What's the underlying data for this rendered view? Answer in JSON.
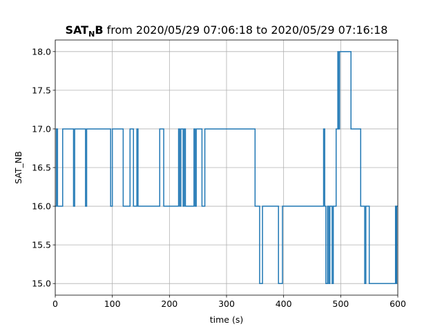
{
  "chart_data": {
    "type": "line",
    "title": {
      "bold_main": "SAT",
      "bold_sub": "N",
      "bold_tail": "B",
      "rest": " from 2020/05/29 07:06:18 to 2020/05/29 07:16:18"
    },
    "xlabel": "time (s)",
    "ylabel": "SAT_NB",
    "xlim": [
      0,
      600
    ],
    "ylim": [
      14.85,
      18.15
    ],
    "xticks": [
      0,
      100,
      200,
      300,
      400,
      500,
      600
    ],
    "xtick_labels": [
      "0",
      "100",
      "200",
      "300",
      "400",
      "500",
      "600"
    ],
    "yticks": [
      15.0,
      15.5,
      16.0,
      16.5,
      17.0,
      17.5,
      18.0
    ],
    "ytick_labels": [
      "15.0",
      "15.5",
      "16.0",
      "16.5",
      "17.0",
      "17.5",
      "18.0"
    ],
    "grid": true,
    "color": "#1f77b4",
    "step": "post",
    "series": [
      {
        "x": [
          0,
          2,
          4,
          13,
          32,
          34,
          53,
          55,
          97,
          100,
          102,
          119,
          131,
          137,
          143,
          145,
          146,
          183,
          190,
          216,
          218,
          220,
          224,
          226,
          228,
          243,
          245,
          247,
          249,
          257,
          262,
          350,
          358,
          363,
          391,
          398,
          470,
          472,
          474,
          477,
          479,
          481,
          485,
          487,
          492,
          495,
          496,
          498,
          518,
          535,
          542,
          544,
          550,
          596,
          597,
          598,
          600
        ],
        "y": [
          16,
          17,
          16,
          17,
          16,
          17,
          16,
          17,
          16,
          17,
          17,
          16,
          17,
          16,
          17,
          16,
          16,
          17,
          16,
          17,
          16,
          17,
          16,
          17,
          16,
          17,
          16,
          17,
          17,
          16,
          17,
          16,
          15,
          16,
          15,
          16,
          17,
          16,
          15,
          16,
          15,
          16,
          15,
          16,
          17,
          18,
          17,
          18,
          17,
          16,
          15,
          16,
          15,
          16,
          15,
          16,
          16
        ]
      }
    ]
  }
}
